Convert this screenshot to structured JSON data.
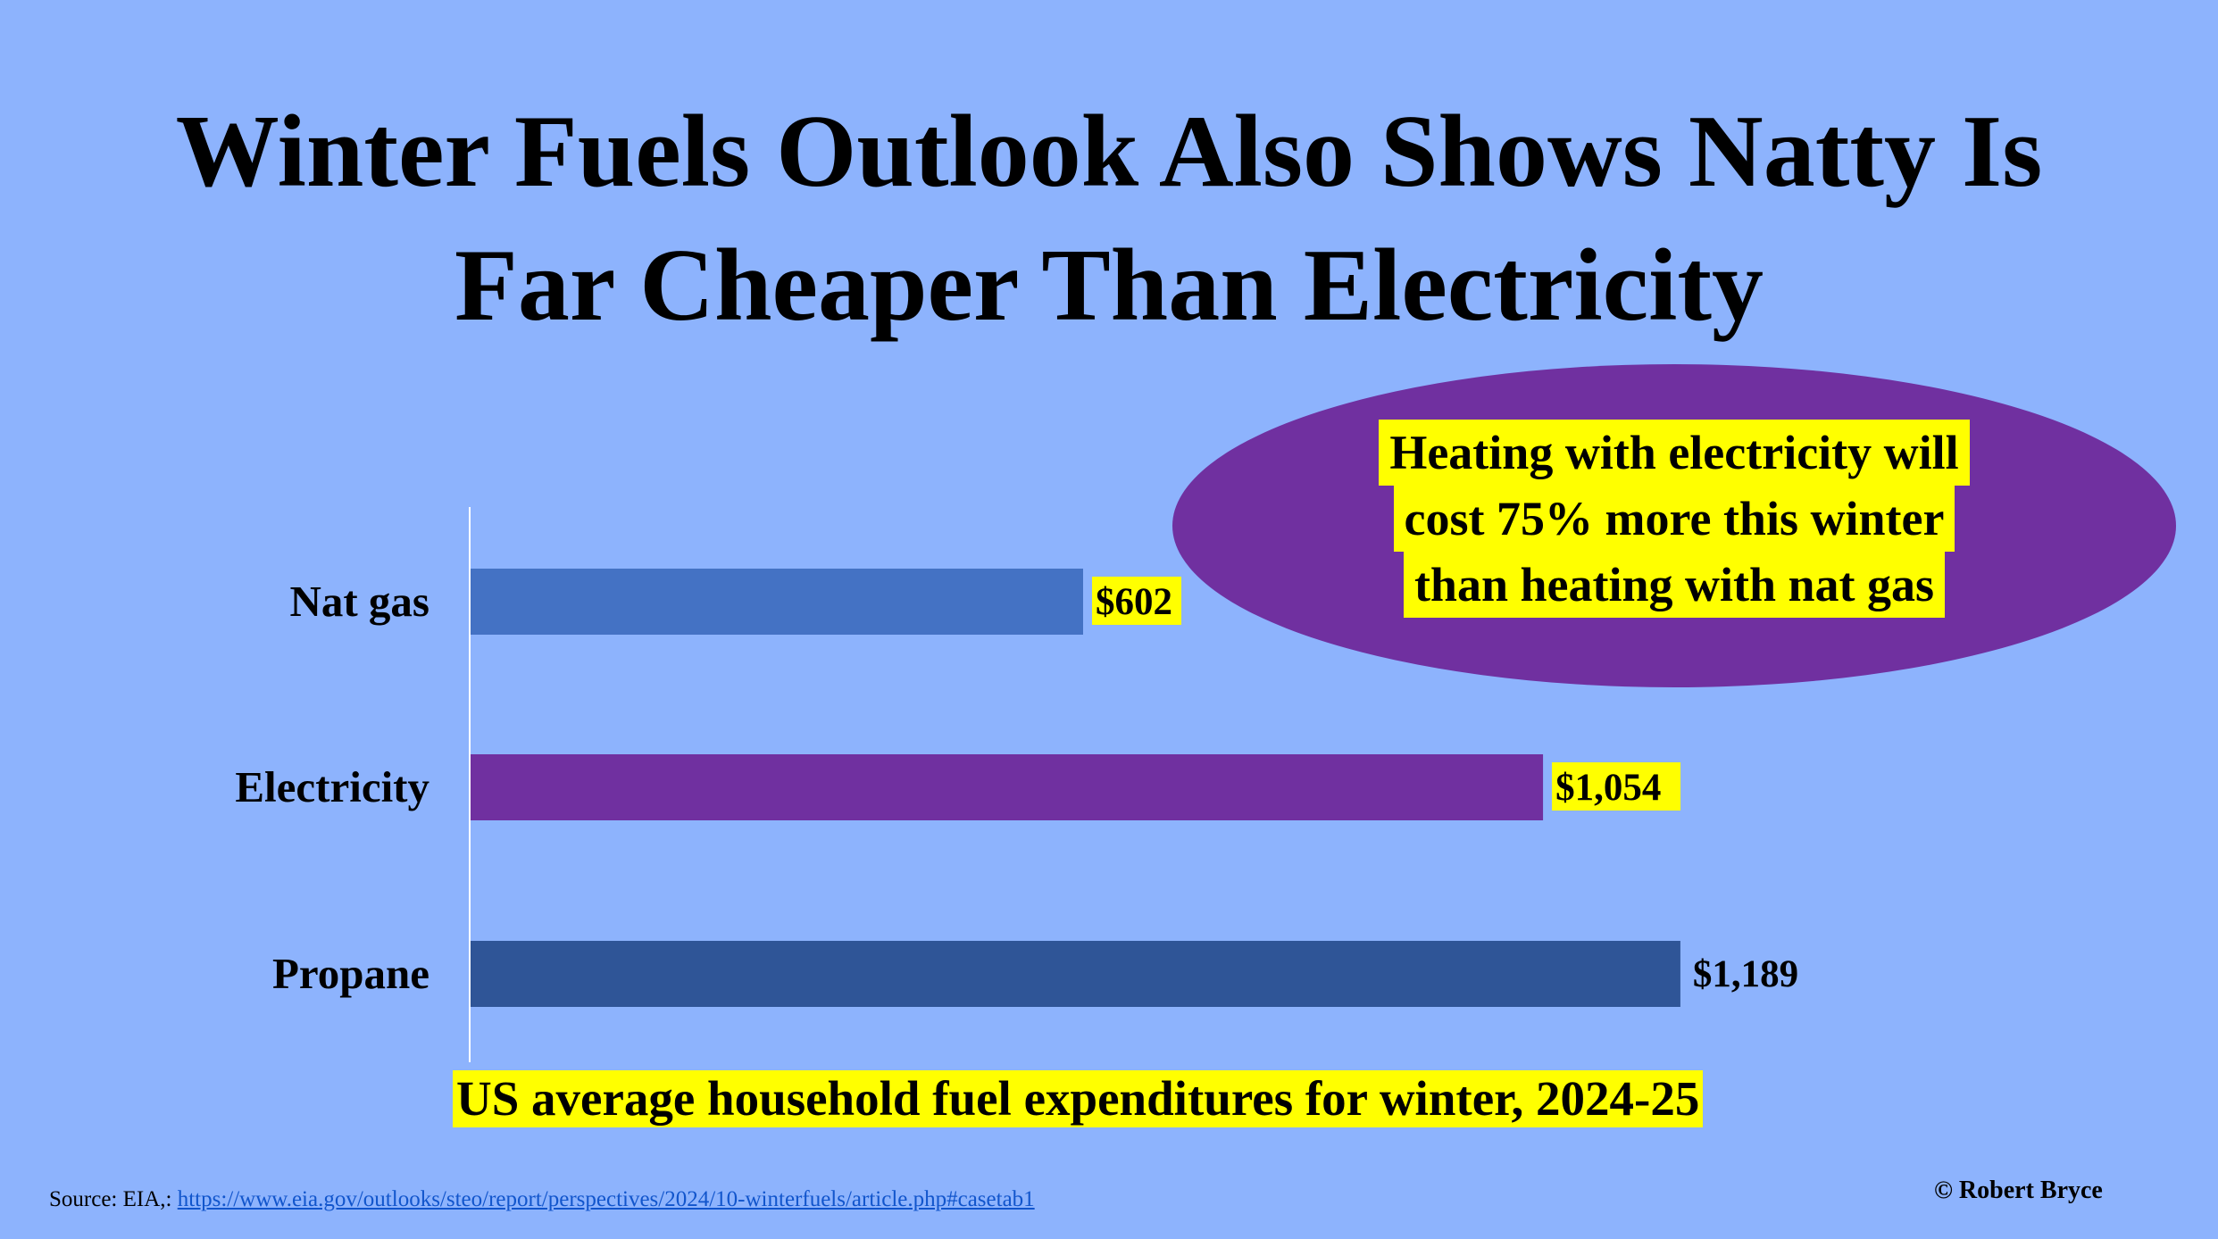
{
  "title": {
    "line1": "Winter Fuels Outlook Also Shows Natty Is",
    "line2": "Far Cheaper Than Electricity"
  },
  "callout": {
    "line1": "Heating with electricity will",
    "line2": "cost 75% more this winter",
    "line3": "than heating with nat gas",
    "color": "#7030a0",
    "highlight": "#ffff00"
  },
  "caption": "US average household fuel expenditures for winter, 2024-25",
  "source": {
    "prefix": "Source: EIA,:",
    "link_text": "https://www.eia.gov/outlooks/steo/report/perspectives/2024/10-winterfuels/article.php#casetab1"
  },
  "credit": "© Robert Bryce",
  "chart_data": {
    "type": "bar",
    "orientation": "horizontal",
    "categories": [
      "Nat gas",
      "Electricity",
      "Propane"
    ],
    "values": [
      602,
      1054,
      1189
    ],
    "data_labels": [
      "$602",
      "$1,054",
      "$1,189"
    ],
    "label_highlight": [
      true,
      true,
      false
    ],
    "colors": [
      "#4472c4",
      "#7030a0",
      "#2f5597"
    ],
    "xlim": [
      0,
      1300
    ],
    "grid": false,
    "legend": "none"
  }
}
